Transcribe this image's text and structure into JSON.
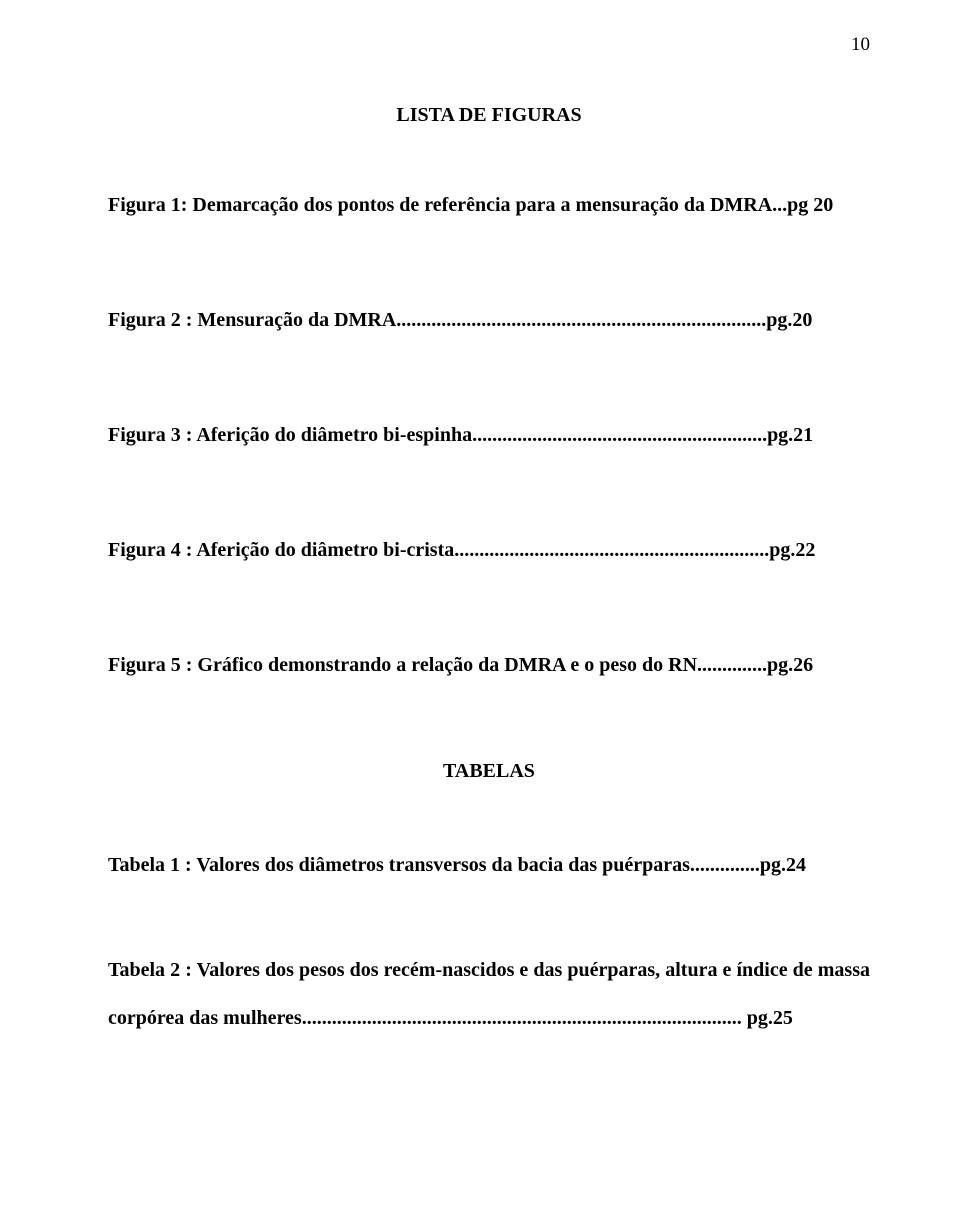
{
  "page_number": "10",
  "title": "LISTA DE FIGURAS",
  "figures": [
    "Figura 1: Demarcação dos pontos de referência para a mensuração  da DMRA...pg 20",
    "Figura 2 : Mensuração da DMRA..........................................................................pg.20",
    "Figura 3 : Aferição do diâmetro bi-espinha...........................................................pg.21",
    "Figura 4 : Aferição do diâmetro bi-crista...............................................................pg.22",
    "Figura 5 : Gráfico demonstrando a relação da DMRA e o peso do RN..............pg.26"
  ],
  "tables_heading": "TABELAS",
  "tables": [
    "Tabela 1 : Valores dos diâmetros transversos da bacia das puérparas..............pg.24",
    "Tabela 2 : Valores dos pesos dos recém-nascidos e das puérparas, altura e índice de massa corpórea das mulheres........................................................................................ pg.25"
  ]
}
